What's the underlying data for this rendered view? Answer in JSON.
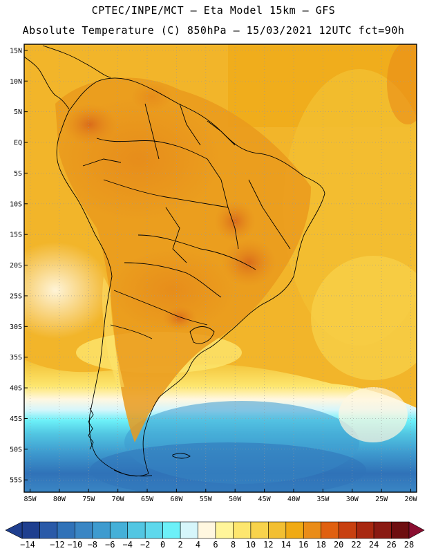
{
  "header": {
    "line1": "CPTEC/INPE/MCT –  Eta Model 15km – GFS",
    "line2": "Absolute Temperature (C) 850hPa – 15/03/2021 12UTC fct=90h"
  },
  "map": {
    "lon_range": [
      -86,
      -19
    ],
    "lat_range": [
      -57,
      16
    ],
    "lat_ticks": [
      "15N",
      "10N",
      "5N",
      "EQ",
      "5S",
      "10S",
      "15S",
      "20S",
      "25S",
      "30S",
      "35S",
      "40S",
      "45S",
      "50S",
      "55S"
    ],
    "lat_values": [
      15,
      10,
      5,
      0,
      -5,
      -10,
      -15,
      -20,
      -25,
      -30,
      -35,
      -40,
      -45,
      -50,
      -55
    ],
    "lon_ticks": [
      "85W",
      "80W",
      "75W",
      "70W",
      "65W",
      "60W",
      "55W",
      "50W",
      "45W",
      "40W",
      "35W",
      "30W",
      "25W",
      "20W"
    ],
    "lon_values": [
      -85,
      -80,
      -75,
      -70,
      -65,
      -60,
      -55,
      -50,
      -45,
      -40,
      -35,
      -30,
      -25,
      -20
    ]
  },
  "colorbar": {
    "labels": [
      "-14",
      "-12",
      "-10",
      "-8",
      "-6",
      "-4",
      "-2",
      "0",
      "2",
      "4",
      "6",
      "8",
      "10",
      "12",
      "14",
      "16",
      "18",
      "20",
      "22",
      "24",
      "26",
      "28"
    ],
    "colors": [
      "#1f3f8f",
      "#2a5aa8",
      "#3072b8",
      "#3a86c4",
      "#3e9bcf",
      "#45b0d8",
      "#52c6e2",
      "#5ed8ec",
      "#6cf0f8",
      "#d6f6fb",
      "#fff7e0",
      "#fff59a",
      "#fde66e",
      "#f8d34c",
      "#f2bf32",
      "#f0aa14",
      "#ea8c18",
      "#e06010",
      "#c84010",
      "#a82810",
      "#8a1a12",
      "#6e0e10"
    ]
  }
}
